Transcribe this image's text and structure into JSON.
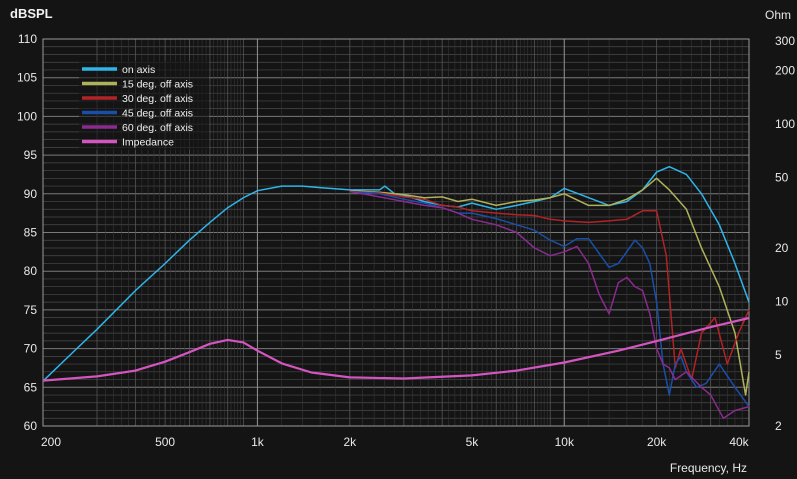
{
  "chart_data": {
    "type": "line",
    "left_axis_title": "dBSPL",
    "right_axis_title": "Ohm",
    "xlabel": "Frequency, Hz",
    "x_scale": "log",
    "xlim": [
      200,
      40000
    ],
    "ylim": [
      60,
      110
    ],
    "y2_scale": "log",
    "y2lim": [
      2,
      300
    ],
    "x_ticks": [
      200,
      500,
      1000,
      2000,
      5000,
      10000,
      20000,
      40000
    ],
    "x_tick_labels": [
      "200",
      "500",
      "1k",
      "2k",
      "5k",
      "10k",
      "20k",
      "40k"
    ],
    "y_ticks": [
      60,
      65,
      70,
      75,
      80,
      85,
      90,
      95,
      100,
      105,
      110
    ],
    "y_tick_labels": [
      "60",
      "65",
      "70",
      "75",
      "80",
      "85",
      "90",
      "95",
      "100",
      "105",
      "110"
    ],
    "y2_ticks": [
      2,
      5,
      10,
      20,
      50,
      100,
      200,
      300
    ],
    "y2_tick_labels": [
      "2",
      "5",
      "10",
      "20",
      "50",
      "100",
      "200",
      "300"
    ],
    "grid": true,
    "legend_position": "top-left",
    "series": [
      {
        "name": "on axis",
        "axis": "left",
        "color": "#2fb5ea",
        "x": [
          200,
          250,
          300,
          400,
          500,
          600,
          700,
          800,
          900,
          1000,
          1200,
          1400,
          1600,
          2000,
          2500,
          2600,
          2800,
          3000,
          3500,
          4000,
          4500,
          5000,
          6000,
          7000,
          8000,
          9000,
          10000,
          12000,
          14000,
          16000,
          18000,
          20000,
          22000,
          25000,
          28000,
          32000,
          36000,
          40000
        ],
        "y": [
          65.8,
          69.5,
          72.5,
          77.5,
          81,
          84,
          86.3,
          88.2,
          89.5,
          90.4,
          91,
          91,
          90.8,
          90.5,
          90.5,
          91,
          90,
          89.8,
          89,
          88.5,
          88.3,
          88.8,
          88,
          88.5,
          89,
          89.5,
          90.7,
          89.5,
          88.5,
          89,
          90.5,
          92.8,
          93.5,
          92.5,
          90,
          86,
          81,
          76
        ]
      },
      {
        "name": "15 deg. off axis",
        "axis": "left",
        "color": "#b0b25a",
        "x": [
          2000,
          2500,
          3000,
          3500,
          4000,
          4500,
          5000,
          6000,
          7000,
          8000,
          9000,
          10000,
          12000,
          14000,
          16000,
          18000,
          20000,
          22000,
          25000,
          28000,
          32000,
          36000,
          39000,
          40000
        ],
        "y": [
          90.4,
          90.2,
          89.9,
          89.5,
          89.6,
          89,
          89.3,
          88.5,
          89,
          89.2,
          89.5,
          90,
          88.5,
          88.5,
          89.3,
          90.5,
          92,
          90.5,
          88,
          83,
          78,
          72,
          64,
          67
        ]
      },
      {
        "name": "30 deg. off axis",
        "axis": "left",
        "color": "#b02326",
        "x": [
          2000,
          2500,
          3000,
          3500,
          4000,
          4500,
          5000,
          6000,
          7000,
          8000,
          9000,
          10000,
          12000,
          14000,
          16000,
          18000,
          20000,
          21500,
          23000,
          24000,
          26000,
          28000,
          31000,
          34000,
          37000,
          40000
        ],
        "y": [
          90.3,
          90.1,
          89.6,
          89.3,
          88.5,
          88.3,
          87.8,
          87.5,
          87.3,
          87.2,
          86.7,
          86.5,
          86.3,
          86.5,
          86.7,
          87.8,
          87.8,
          82,
          67.5,
          70,
          66,
          72,
          74,
          68,
          72,
          75
        ]
      },
      {
        "name": "45 deg. off axis",
        "axis": "left",
        "color": "#1a4fa8",
        "x": [
          2000,
          2500,
          3000,
          3500,
          4000,
          4500,
          5000,
          6000,
          7000,
          8000,
          9000,
          10000,
          11000,
          12000,
          14000,
          15000,
          17000,
          18000,
          19000,
          20000,
          21000,
          22000,
          23000,
          24000,
          25000,
          27000,
          29000,
          32000,
          36000,
          40000
        ],
        "y": [
          90.3,
          90,
          89.3,
          88.8,
          88.2,
          87.5,
          87.5,
          86.8,
          86,
          85.3,
          84,
          83.2,
          84.2,
          84.2,
          80.5,
          81,
          84,
          83,
          81,
          76,
          68,
          64,
          68,
          69,
          67,
          65,
          65.5,
          68,
          65,
          62.5
        ]
      },
      {
        "name": "60 deg. off axis",
        "axis": "left",
        "color": "#8a2b8f",
        "x": [
          2000,
          2500,
          3000,
          3500,
          4000,
          4500,
          5000,
          6000,
          7000,
          8000,
          9000,
          10000,
          11000,
          12000,
          13000,
          14000,
          15000,
          16000,
          17000,
          18000,
          19000,
          20000,
          21000,
          22000,
          23000,
          25000,
          28000,
          30000,
          33000,
          36000,
          40000
        ],
        "y": [
          90.3,
          89.6,
          89,
          88.5,
          88.2,
          87.5,
          86.7,
          86,
          85,
          83,
          82,
          82.5,
          83.2,
          81,
          77,
          74.5,
          78.5,
          79.2,
          78,
          77.5,
          74.5,
          70,
          68,
          67.5,
          66,
          67,
          65,
          64,
          61,
          62,
          62.5
        ]
      },
      {
        "name": "Impedance",
        "axis": "right",
        "color": "#d455c0",
        "x": [
          200,
          300,
          400,
          500,
          600,
          700,
          800,
          900,
          1000,
          1200,
          1500,
          2000,
          3000,
          5000,
          7000,
          10000,
          15000,
          20000,
          30000,
          40000
        ],
        "y": [
          3.6,
          3.8,
          4.1,
          4.6,
          5.2,
          5.8,
          6.1,
          5.9,
          5.3,
          4.5,
          4,
          3.75,
          3.7,
          3.85,
          4.1,
          4.55,
          5.3,
          6,
          7.2,
          8.1
        ]
      }
    ]
  }
}
